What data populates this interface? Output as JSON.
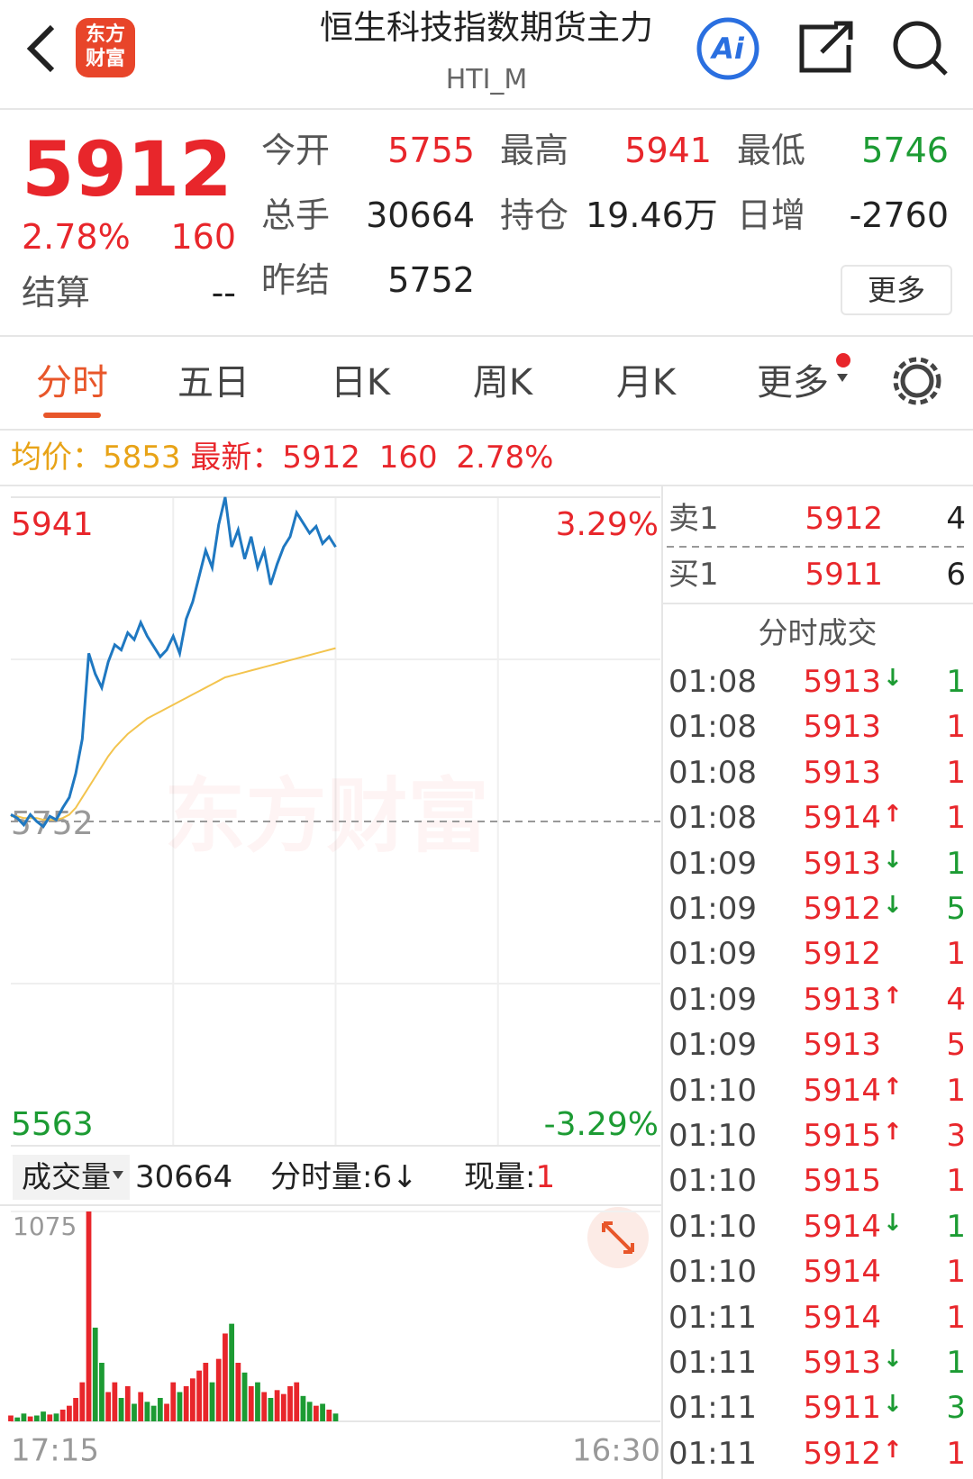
{
  "header": {
    "logo": [
      "东方",
      "财富"
    ],
    "title": "恒生科技指数期货主力",
    "code": "HTI_M",
    "ai": "Ai"
  },
  "quote": {
    "price": "5912",
    "change_pct": "2.78%",
    "change": "160",
    "settle_label": "结算",
    "settle": "--",
    "fields": [
      {
        "label": "今开",
        "value": "5755",
        "color": "#e8262b"
      },
      {
        "label": "最高",
        "value": "5941",
        "color": "#e8262b"
      },
      {
        "label": "最低",
        "value": "5746",
        "color": "#1c9b33"
      },
      {
        "label": "总手",
        "value": "30664",
        "color": "#222222"
      },
      {
        "label": "持仓",
        "value": "19.46万",
        "color": "#222222"
      },
      {
        "label": "日增",
        "value": "-2760",
        "color": "#222222"
      },
      {
        "label": "昨结",
        "value": "5752",
        "color": "#222222"
      }
    ],
    "more": "更多"
  },
  "tabs": {
    "items": [
      "分时",
      "五日",
      "日K",
      "周K",
      "月K",
      "更多"
    ],
    "active": 0
  },
  "summary": {
    "avg_label": "均价：",
    "avg": "5853",
    "latest_label": "最新：",
    "latest": "5912",
    "change": "160",
    "change_pct": "2.78%"
  },
  "chart_data": [
    {
      "type": "line",
      "watermark": "东方财富",
      "xlim": [
        0,
        100
      ],
      "ylim": [
        5563,
        5941
      ],
      "yticks": [
        5941,
        5752,
        5563
      ],
      "y2lim": [
        -3.29,
        3.29
      ],
      "y2ticks": [
        {
          "value": 3.29,
          "label": "3.29%"
        },
        {
          "value": -3.29,
          "label": "-3.29%"
        }
      ],
      "series": [
        {
          "color": "#1f78c1",
          "values": [
            5756,
            5754,
            5750,
            5756,
            5752,
            5749,
            5755,
            5753,
            5760,
            5766,
            5780,
            5800,
            5850,
            5838,
            5830,
            5845,
            5855,
            5852,
            5862,
            5858,
            5868,
            5860,
            5854,
            5848,
            5852,
            5860,
            5850,
            5870,
            5880,
            5895,
            5910,
            5900,
            5925,
            5941,
            5912,
            5922,
            5905,
            5918,
            5900,
            5910,
            5890,
            5902,
            5912,
            5918,
            5932,
            5926,
            5920,
            5924,
            5914,
            5918,
            5912
          ]
        },
        {
          "color": "#f3c44e",
          "values": [
            5755,
            5755,
            5754,
            5754,
            5754,
            5753,
            5753,
            5753,
            5754,
            5756,
            5760,
            5766,
            5772,
            5778,
            5784,
            5790,
            5795,
            5799,
            5803,
            5806,
            5809,
            5812,
            5814,
            5816,
            5818,
            5820,
            5822,
            5824,
            5826,
            5828,
            5830,
            5832,
            5834,
            5836,
            5837,
            5838,
            5839,
            5840,
            5841,
            5842,
            5843,
            5844,
            5845,
            5846,
            5847,
            5848,
            5849,
            5850,
            5851,
            5852,
            5853
          ]
        }
      ]
    },
    {
      "type": "bar",
      "header": {
        "label": "成交量",
        "total": "30664",
        "minute": "分时量:6↓",
        "current_label": "现量:",
        "current": "1"
      },
      "xlim": [
        0,
        100
      ],
      "xticks": [
        {
          "value": 0,
          "label": "17:15"
        },
        {
          "value": 100,
          "label": "16:30"
        }
      ],
      "ylim": [
        0,
        1075
      ],
      "yticks": [
        1075
      ],
      "up_color": "#e8262b",
      "down_color": "#1c9b33",
      "values": [
        30,
        20,
        40,
        25,
        30,
        50,
        35,
        40,
        60,
        80,
        120,
        200,
        1075,
        480,
        300,
        150,
        200,
        120,
        180,
        90,
        150,
        100,
        80,
        120,
        90,
        200,
        150,
        180,
        220,
        260,
        300,
        200,
        320,
        450,
        500,
        300,
        250,
        180,
        200,
        150,
        120,
        160,
        140,
        180,
        200,
        130,
        100,
        80,
        90,
        60,
        40
      ]
    }
  ],
  "order_book": {
    "asks": [
      {
        "label": "卖1",
        "price": "5912",
        "qty": "4"
      }
    ],
    "bids": [
      {
        "label": "买1",
        "price": "5911",
        "qty": "6"
      }
    ],
    "trades_title": "分时成交",
    "trades": [
      {
        "time": "01:08",
        "price": "5913",
        "arrow": "↓",
        "qty": "1"
      },
      {
        "time": "01:08",
        "price": "5913",
        "qty": "1"
      },
      {
        "time": "01:08",
        "price": "5913",
        "qty": "1"
      },
      {
        "time": "01:08",
        "price": "5914",
        "arrow": "↑",
        "qty": "1"
      },
      {
        "time": "01:09",
        "price": "5913",
        "arrow": "↓",
        "qty": "1"
      },
      {
        "time": "01:09",
        "price": "5912",
        "arrow": "↓",
        "qty": "5"
      },
      {
        "time": "01:09",
        "price": "5912",
        "qty": "1"
      },
      {
        "time": "01:09",
        "price": "5913",
        "arrow": "↑",
        "qty": "4"
      },
      {
        "time": "01:09",
        "price": "5913",
        "qty": "5"
      },
      {
        "time": "01:10",
        "price": "5914",
        "arrow": "↑",
        "qty": "1"
      },
      {
        "time": "01:10",
        "price": "5915",
        "arrow": "↑",
        "qty": "3"
      },
      {
        "time": "01:10",
        "price": "5915",
        "qty": "1"
      },
      {
        "time": "01:10",
        "price": "5914",
        "arrow": "↓",
        "qty": "1"
      },
      {
        "time": "01:10",
        "price": "5914",
        "qty": "1"
      },
      {
        "time": "01:11",
        "price": "5914",
        "qty": "1"
      },
      {
        "time": "01:11",
        "price": "5913",
        "arrow": "↓",
        "qty": "1"
      },
      {
        "time": "01:11",
        "price": "5911",
        "arrow": "↓",
        "qty": "3"
      },
      {
        "time": "01:11",
        "price": "5912",
        "arrow": "↑",
        "qty": "1"
      }
    ]
  }
}
